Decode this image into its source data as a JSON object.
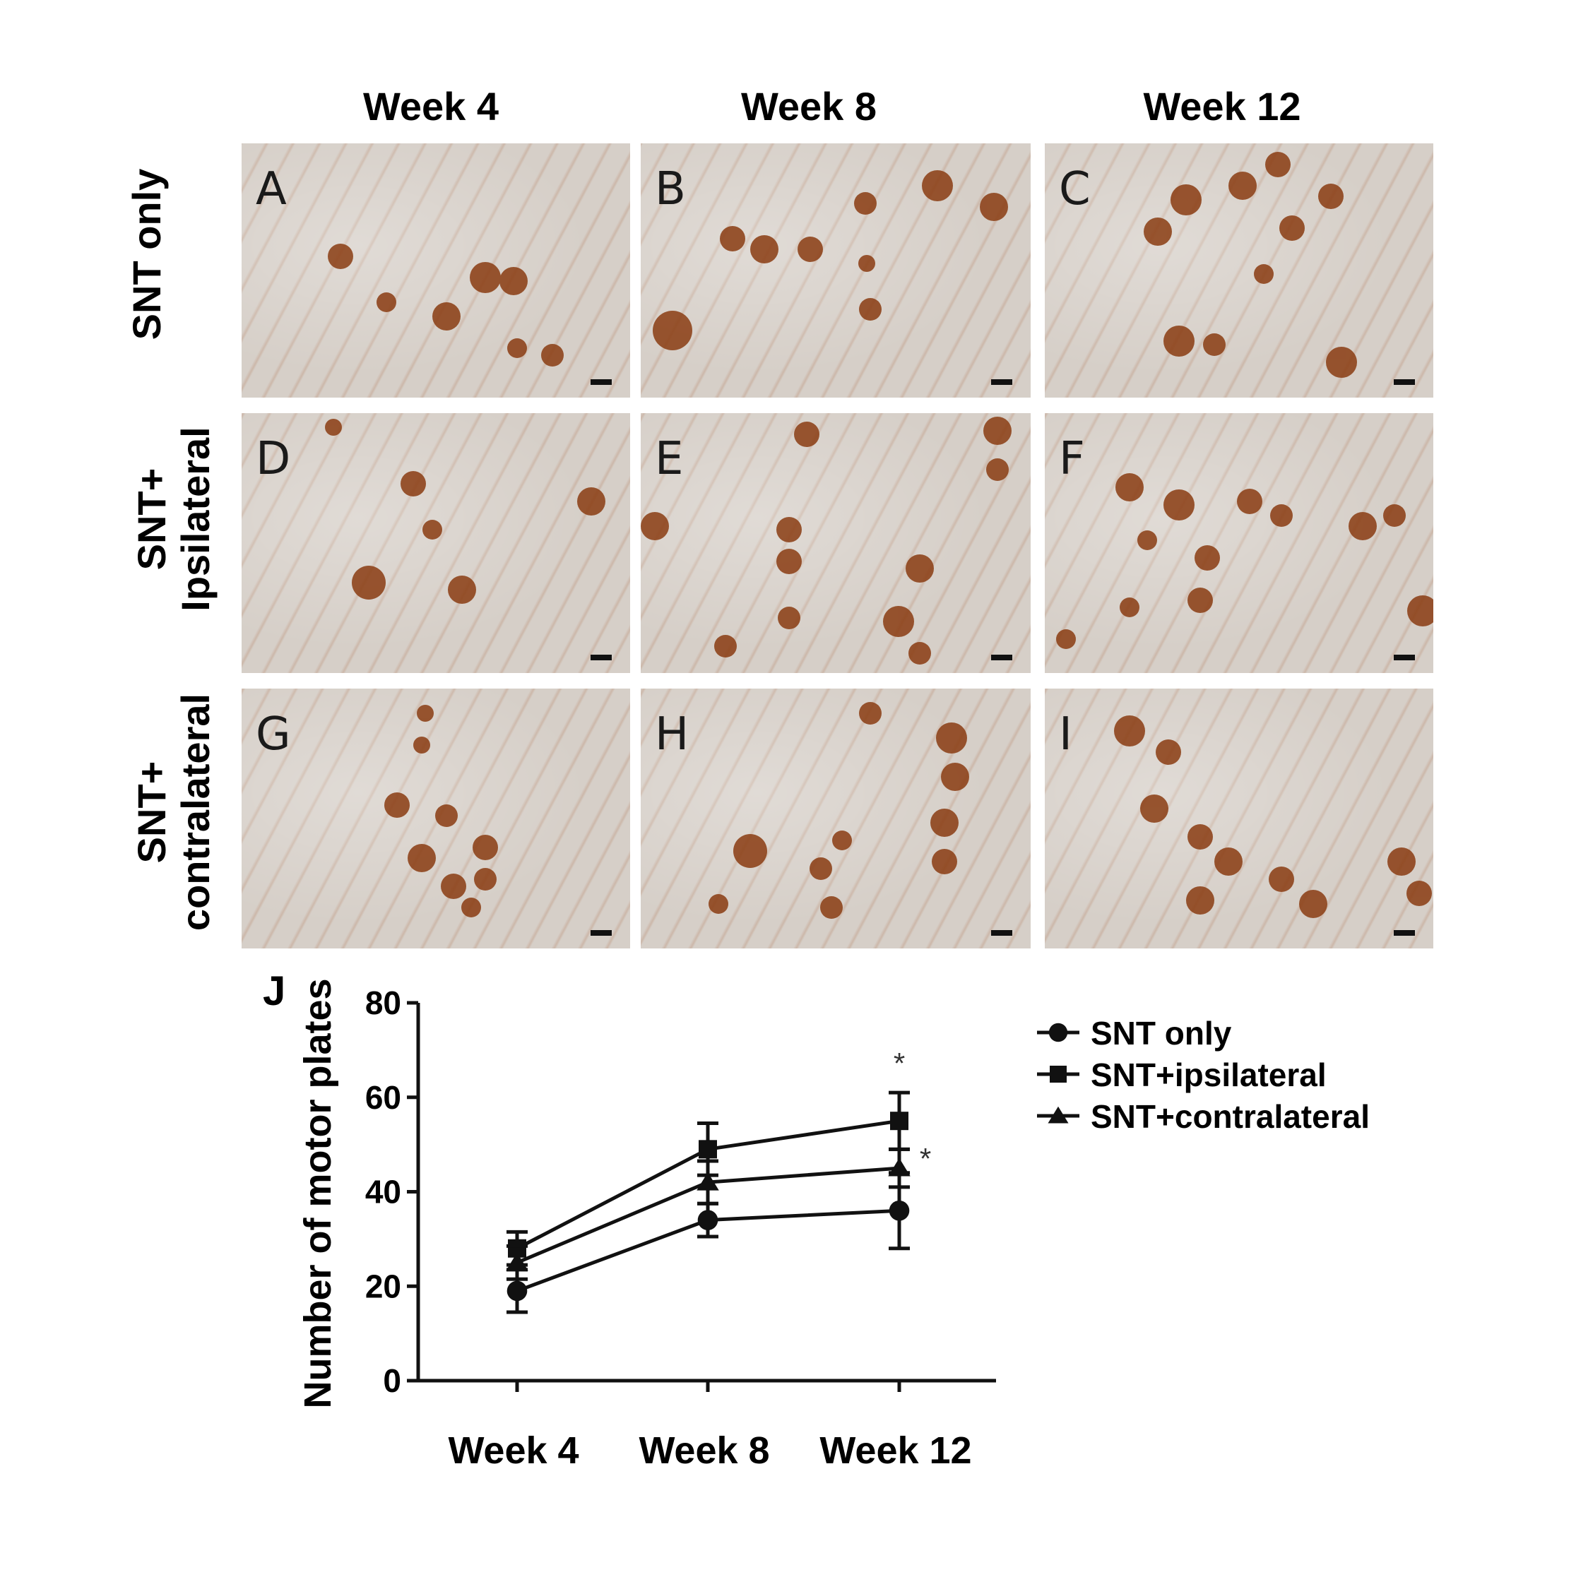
{
  "column_headers": [
    "Week 4",
    "Week 8",
    "Week 12"
  ],
  "row_headers": [
    {
      "lines": [
        "SNT only"
      ]
    },
    {
      "lines": [
        "SNT+",
        "Ipsilateral"
      ]
    },
    {
      "lines": [
        "SNT+",
        "contralateral"
      ]
    }
  ],
  "panel_letters": [
    "A",
    "B",
    "C",
    "D",
    "E",
    "F",
    "G",
    "H",
    "I"
  ],
  "chart_panel_letter": "J",
  "chart_data": {
    "type": "line",
    "categories": [
      "Week 4",
      "Week 8",
      "Week 12"
    ],
    "ylabel": "Number of motor plates",
    "xlabel": "",
    "ylim": [
      0,
      80
    ],
    "yticks": [
      "0",
      "20",
      "40",
      "60",
      "80"
    ],
    "series": [
      {
        "name": "SNT only",
        "marker": "circle",
        "values": [
          19,
          34,
          36
        ],
        "errors": [
          4.5,
          3.5,
          8
        ]
      },
      {
        "name": "SNT+ipsilateral",
        "marker": "square",
        "values": [
          28,
          49,
          55
        ],
        "errors": [
          3.5,
          5.5,
          6
        ]
      },
      {
        "name": "SNT+contralateral",
        "marker": "triangle",
        "values": [
          25,
          42,
          45
        ],
        "errors": [
          3.5,
          4.5,
          4
        ]
      }
    ],
    "annotations": [
      "*",
      "*"
    ],
    "legend_position": "right"
  }
}
